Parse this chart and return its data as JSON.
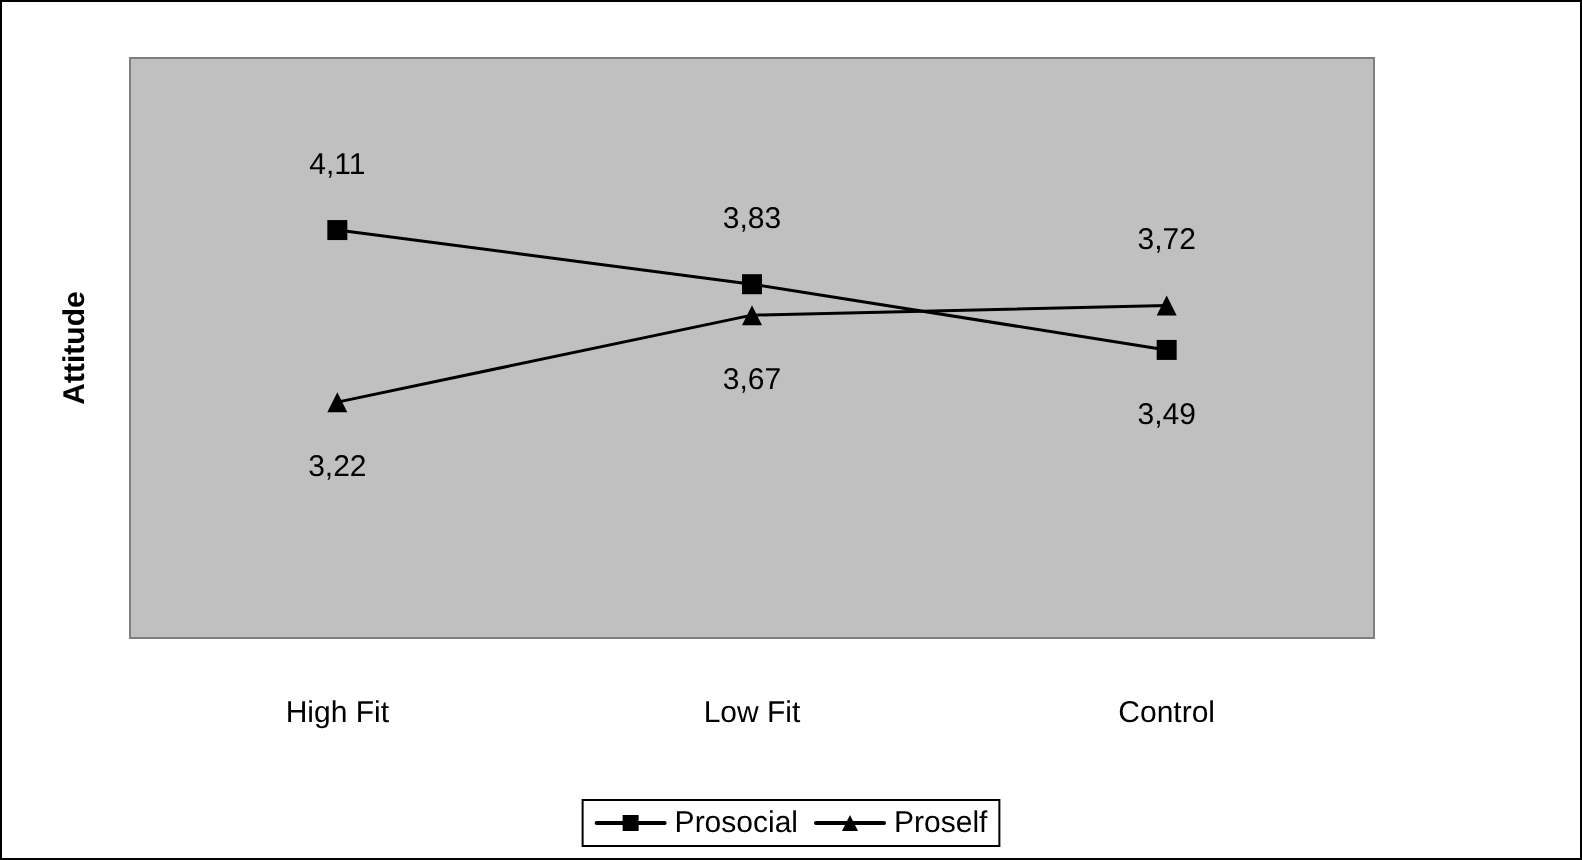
{
  "chart_data": {
    "type": "line",
    "ylabel": "Attitude",
    "categories": [
      "High Fit",
      "Low Fit",
      "Control"
    ],
    "series": [
      {
        "name": "Prosocial",
        "color": "#000000",
        "marker": "square",
        "values": [
          4.11,
          3.83,
          3.49
        ],
        "value_labels": [
          "4,11",
          "3,83",
          "3,49"
        ]
      },
      {
        "name": "Proself",
        "color": "#000000",
        "marker": "triangle",
        "values": [
          3.22,
          3.67,
          3.72
        ],
        "value_labels": [
          "3,22",
          "3,67",
          "3,72"
        ]
      }
    ],
    "ylim": [
      2,
      5
    ],
    "tick_labels": "x",
    "grid": false,
    "legend": "bottom",
    "line_style": "solid"
  }
}
